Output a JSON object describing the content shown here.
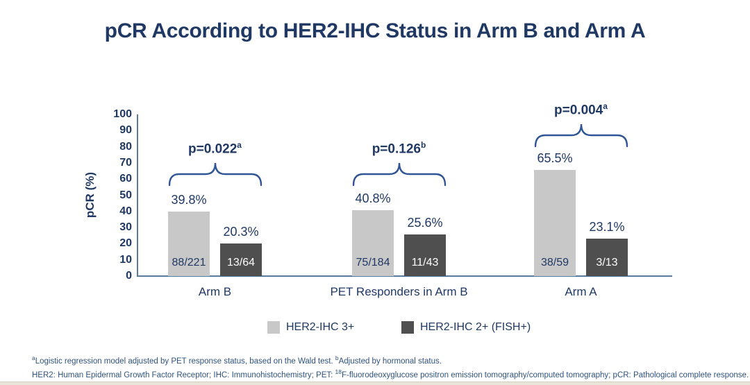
{
  "chart_data": {
    "type": "bar",
    "title": "pCR According to HER2-IHC Status in Arm B and Arm A",
    "ylabel": "pCR (%)",
    "ylim": [
      0,
      100
    ],
    "ytick_step": 10,
    "yticks": [
      0,
      10,
      20,
      30,
      40,
      50,
      60,
      70,
      80,
      90,
      100
    ],
    "grid": false,
    "legend_position": "bottom-center",
    "categories": [
      "Arm B",
      "PET Responders in Arm B",
      "Arm A"
    ],
    "series": [
      {
        "name": "HER2-IHC 3+",
        "color": "#c8c8c8",
        "label_color": "#1f3864",
        "values": [
          39.8,
          40.8,
          65.5
        ],
        "value_labels": [
          "39.8%",
          "40.8%",
          "65.5%"
        ],
        "count_labels": [
          "88/221",
          "75/184",
          "38/59"
        ]
      },
      {
        "name": "HER2-IHC 2+ (FISH+)",
        "color": "#4f4f4f",
        "label_color": "#ffffff",
        "values": [
          20.3,
          25.6,
          23.1
        ],
        "value_labels": [
          "20.3%",
          "25.6%",
          "23.1%"
        ],
        "count_labels": [
          "13/64",
          "11/43",
          "3/13"
        ]
      }
    ],
    "p_values": [
      {
        "text": "p=0.022",
        "sup": "a"
      },
      {
        "text": "p=0.126",
        "sup": "b"
      },
      {
        "text": "p=0.004",
        "sup": "a"
      }
    ]
  },
  "footnotes": {
    "line1": {
      "sup_a": "a",
      "part1": "Logistic regression model adjusted by PET response status, based on the Wald test. ",
      "sup_b": "b",
      "part2": "Adjusted by hormonal status."
    },
    "line2": {
      "part1": "HER2: Human Epidermal Growth Factor Receptor; IHC: Immunohistochemistry; PET: ",
      "sup": "18",
      "part2": "F-fluorodeoxyglucose positron emission tomography/computed tomography; pCR: Pathological complete response."
    }
  },
  "colors": {
    "navy": "#1f3864",
    "axis": "#5b7b9c",
    "brace": "#2f5597",
    "light_bar": "#c8c8c8",
    "dark_bar": "#4f4f4f",
    "footnote": "#2f5380"
  }
}
